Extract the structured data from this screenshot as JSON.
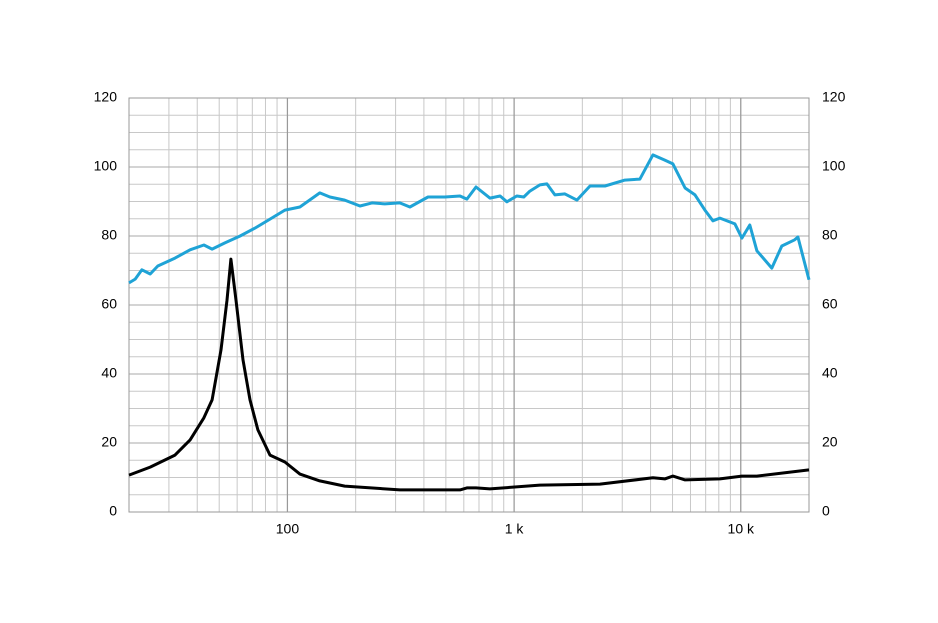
{
  "chart_data": {
    "type": "line",
    "xscale": "log",
    "xlim": [
      20,
      20000
    ],
    "xticks": [
      100,
      {
        "value": 1000,
        "label": "1 k"
      },
      {
        "value": 10000,
        "label": "10 k"
      }
    ],
    "ylim": [
      0,
      120
    ],
    "yticks": [
      0,
      20,
      40,
      60,
      80,
      100,
      120
    ],
    "y2lim": [
      0,
      120
    ],
    "y2ticks": [
      0,
      20,
      40,
      60,
      80,
      100,
      120
    ],
    "grid": true,
    "minor_grid": true,
    "series": [
      {
        "color": "#1fa3d6",
        "x": [
          20,
          21.3,
          22.8,
          24.8,
          26.8,
          31.9,
          37.2,
          42.8,
          46.5,
          53,
          61.8,
          71.9,
          83.8,
          97.5,
          113.5,
          139,
          154,
          179,
          209,
          236,
          269,
          313,
          347,
          417,
          495,
          577,
          619,
          679,
          782,
          867,
          929,
          1028,
          1104,
          1174,
          1300,
          1396,
          1514,
          1675,
          1892,
          2163,
          2518,
          3083,
          3590,
          4096,
          4624,
          5020,
          5680,
          6280,
          6950,
          7536,
          8090,
          9420,
          10116,
          10960,
          11776,
          13710,
          15170,
          17300,
          17860,
          20000
        ],
        "values": [
          66.4,
          67.5,
          70.2,
          69,
          71.3,
          73.6,
          76,
          77.4,
          76.2,
          78,
          80,
          82.3,
          84.9,
          87.5,
          88.4,
          92.5,
          91.3,
          90.4,
          88.7,
          89.6,
          89.3,
          89.6,
          88.4,
          91.3,
          91.3,
          91.6,
          90.7,
          94.2,
          91,
          91.6,
          89.9,
          91.6,
          91.3,
          93,
          94.8,
          95.1,
          91.9,
          92.2,
          90.4,
          94.5,
          94.5,
          96.2,
          96.5,
          103.5,
          102,
          100.9,
          93.9,
          91.9,
          87.5,
          84.4,
          85.2,
          83.5,
          79.4,
          83.2,
          75.7,
          70.7,
          77.1,
          78.9,
          79.7,
          67.3
        ]
      },
      {
        "color": "#000000",
        "x": [
          20,
          24.8,
          31.9,
          37.2,
          42.8,
          46.5,
          50.9,
          54.1,
          56.3,
          59.3,
          63.7,
          68.4,
          74.1,
          83.8,
          97.5,
          113.5,
          139,
          179,
          313,
          577,
          619,
          679,
          782,
          1300,
          2392,
          4096,
          4624,
          5020,
          5680,
          8090,
          10116,
          11776,
          20000
        ],
        "values": [
          10.7,
          13,
          16.5,
          20.9,
          27.3,
          32.5,
          47,
          61.4,
          73.3,
          61.4,
          44.1,
          32.5,
          23.8,
          16.5,
          14.5,
          11,
          9,
          7.5,
          6.4,
          6.4,
          7,
          7,
          6.7,
          7.8,
          8.1,
          9.9,
          9.6,
          10.4,
          9.3,
          9.6,
          10.4,
          10.4,
          12.2
        ]
      }
    ]
  }
}
